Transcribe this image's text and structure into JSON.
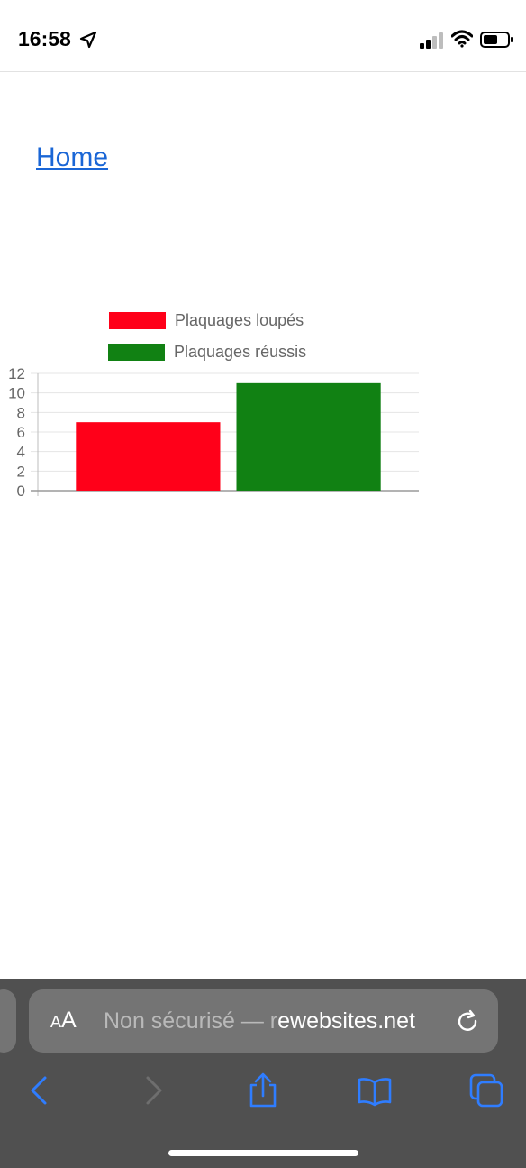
{
  "status_bar": {
    "time": "16:58",
    "icons": [
      "location-arrow-icon",
      "cellular-signal-icon",
      "wifi-icon",
      "battery-icon"
    ]
  },
  "page": {
    "home_link": "Home"
  },
  "chart_data": {
    "type": "bar",
    "categories": [
      ""
    ],
    "series": [
      {
        "name": "Plaquages loupés",
        "values": [
          7
        ],
        "color": "#ff0019"
      },
      {
        "name": "Plaquages réussis",
        "values": [
          11
        ],
        "color": "#118113"
      }
    ],
    "ylim": [
      0,
      12
    ],
    "yticks": [
      "0",
      "2",
      "4",
      "6",
      "8",
      "10",
      "12"
    ],
    "grid": true,
    "legend": "top",
    "xlabel": "",
    "ylabel": ""
  },
  "browser": {
    "aa_small": "A",
    "aa_large": "A",
    "address_prefix": "Non sécurisé — r",
    "address_host": "ewebsites.net",
    "accent_color": "#2f7dff",
    "buttons": [
      "back-icon",
      "forward-icon",
      "share-icon",
      "bookmarks-icon",
      "tabs-icon"
    ]
  }
}
